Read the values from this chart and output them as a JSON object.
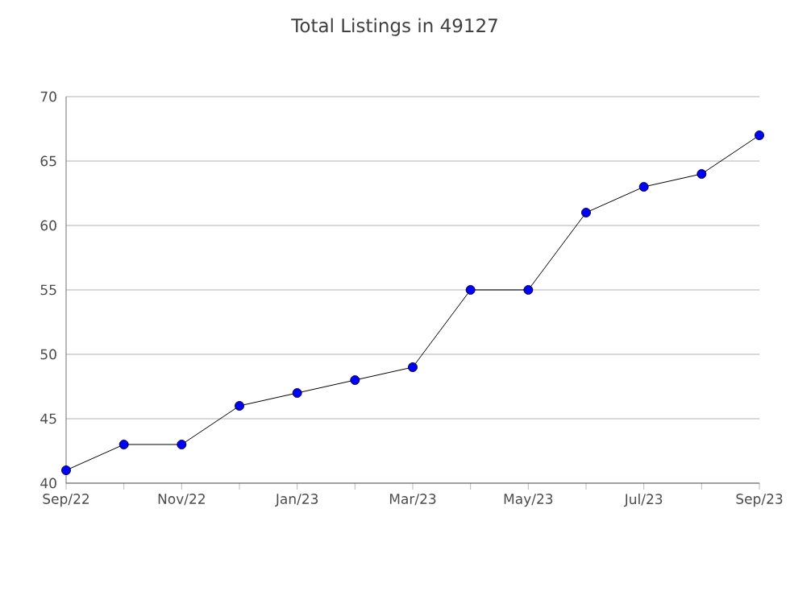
{
  "chart_data": {
    "type": "line",
    "title": "Total Listings in 49127",
    "categories": [
      "Sep/22",
      null,
      "Nov/22",
      null,
      "Jan/23",
      null,
      "Mar/23",
      null,
      "May/23",
      null,
      "Jul/23",
      null,
      "Sep/23"
    ],
    "series": [
      {
        "color": "#0000ff",
        "values": [
          41,
          43,
          43,
          46,
          47,
          48,
          49,
          55,
          55,
          61,
          63,
          64,
          67
        ]
      }
    ],
    "ylim": [
      40,
      70
    ],
    "yticks": [
      40,
      45,
      50,
      55,
      60,
      65,
      70
    ],
    "grid": "y",
    "marker": "circle",
    "line_style": "solid"
  }
}
